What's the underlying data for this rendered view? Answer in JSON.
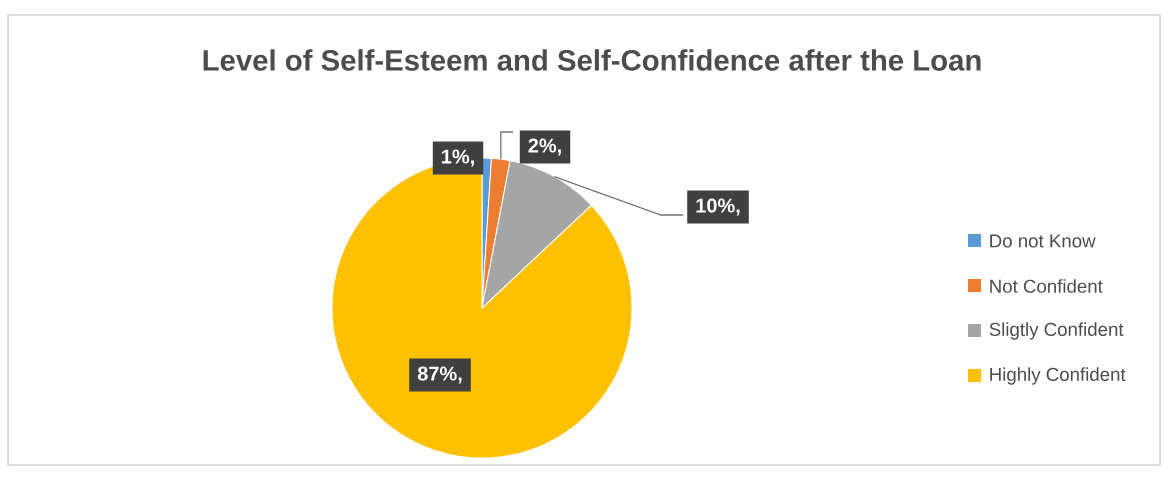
{
  "chart_data": {
    "type": "pie",
    "title": "Level of Self-Esteem and Self-Confidence after the Loan",
    "categories": [
      "Do not Know",
      "Not Confident",
      "Sligtly Confident",
      "Highly Confident"
    ],
    "values": [
      1,
      2,
      10,
      87
    ],
    "value_labels": [
      "1%,",
      "2%,",
      "10%,",
      "87%,"
    ],
    "colors": [
      "#5b9bd5",
      "#ed7d31",
      "#a5a5a5",
      "#ffc000"
    ],
    "legend": "right"
  }
}
